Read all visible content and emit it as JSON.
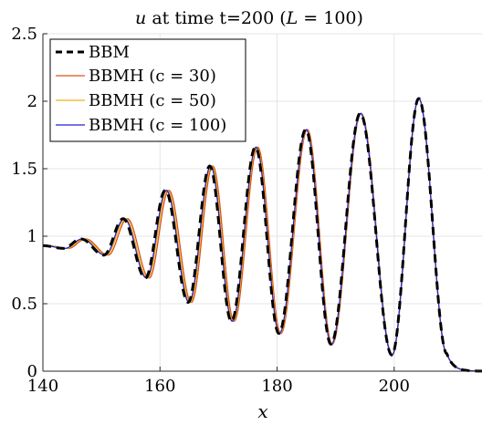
{
  "chart_data": {
    "type": "line",
    "title": "u at time t=200 (L = 100)",
    "title_parts": {
      "var": "u",
      "text": " at time t=200 (",
      "L": "L",
      "eq": " = 100)"
    },
    "xlabel": "x",
    "ylabel": "",
    "xlim": [
      140,
      215
    ],
    "ylim": [
      0,
      2.5
    ],
    "xticks": [
      140,
      160,
      180,
      200
    ],
    "xtick_labels": [
      "140",
      "160",
      "180",
      "200"
    ],
    "yticks": [
      0,
      0.5,
      1,
      1.5,
      2,
      2.5
    ],
    "ytick_labels": [
      "0",
      "0.5",
      "1",
      "1.5",
      "2",
      "2.5"
    ],
    "grid": true,
    "legend_position": "top-left",
    "legend_labels": {
      "bbm": "BBM",
      "c30": "BBMH (c = 30)",
      "c50": "BBMH (c = 50)",
      "c100": "BBMH (c = 100)"
    },
    "colors": {
      "bbm": "#000000",
      "c30": "#D95319",
      "c50": "#EDB120",
      "c100": "#2323D2",
      "grid": "#E6E6E6",
      "axis": "#262626"
    },
    "series": [
      {
        "name": "BBM",
        "key": "bbm",
        "style": "dashed",
        "shift": 0.0
      },
      {
        "name": "BBMH (c = 30)",
        "key": "c30",
        "style": "solid",
        "shift": 0.85
      },
      {
        "name": "BBMH (c = 50)",
        "key": "c50",
        "style": "solid",
        "shift": 0.5
      },
      {
        "name": "BBMH (c = 100)",
        "key": "c100",
        "style": "solid",
        "shift": 0.25
      }
    ],
    "waves": [
      {
        "x": 204.2,
        "max": 2.02
      },
      {
        "x": 194.2,
        "max": 1.91,
        "min": 0.12,
        "min_x": 199.6
      },
      {
        "x": 184.9,
        "max": 1.79,
        "min": 0.2,
        "min_x": 189.2
      },
      {
        "x": 176.3,
        "max": 1.66,
        "min": 0.28,
        "min_x": 180.3
      },
      {
        "x": 168.5,
        "max": 1.52,
        "min": 0.37,
        "min_x": 172.2
      },
      {
        "x": 160.9,
        "max": 1.34,
        "min": 0.51,
        "min_x": 164.8
      },
      {
        "x": 153.7,
        "max": 1.13,
        "min": 0.69,
        "min_x": 157.5
      },
      {
        "x": 146.5,
        "max": 0.98,
        "min": 0.86,
        "min_x": 150.4
      },
      {
        "x": 140.0,
        "max": 0.93,
        "min": 0.91,
        "min_x": 143.5
      }
    ],
    "tail": {
      "start": 209.0,
      "value_at_start": 0.13,
      "end": 215,
      "end_value": 0.0
    }
  }
}
